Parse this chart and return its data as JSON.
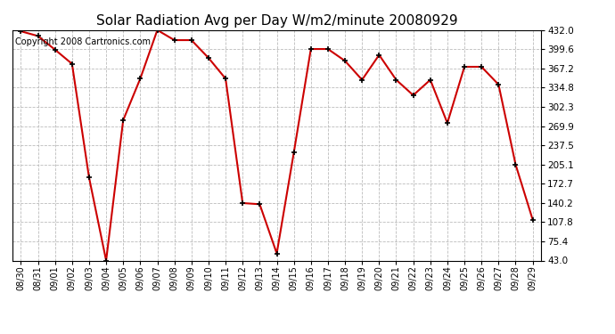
{
  "title": "Solar Radiation Avg per Day W/m2/minute 20080929",
  "copyright": "Copyright 2008 Cartronics.com",
  "dates": [
    "08/30",
    "08/31",
    "09/01",
    "09/02",
    "09/03",
    "09/04",
    "09/05",
    "09/06",
    "09/07",
    "09/08",
    "09/09",
    "09/10",
    "09/11",
    "09/12",
    "09/13",
    "09/14",
    "09/15",
    "09/16",
    "09/17",
    "09/18",
    "09/19",
    "09/20",
    "09/21",
    "09/22",
    "09/23",
    "09/24",
    "09/25",
    "09/26",
    "09/27",
    "09/28",
    "09/29"
  ],
  "values": [
    430,
    422,
    399,
    375,
    183,
    43,
    280,
    350,
    432,
    415,
    415,
    385,
    350,
    140,
    138,
    55,
    225,
    400,
    400,
    380,
    348,
    390,
    348,
    322,
    348,
    275,
    370,
    370,
    340,
    205,
    112
  ],
  "line_color": "#cc0000",
  "bg_color": "#ffffff",
  "grid_color": "#bbbbbb",
  "ymin": 43.0,
  "ymax": 432.0,
  "yticks": [
    43.0,
    75.4,
    107.8,
    140.2,
    172.7,
    205.1,
    237.5,
    269.9,
    302.3,
    334.8,
    367.2,
    399.6,
    432.0
  ],
  "title_fontsize": 11,
  "copyright_fontsize": 7,
  "tick_fontsize": 7,
  "ytick_fontsize": 7.5
}
